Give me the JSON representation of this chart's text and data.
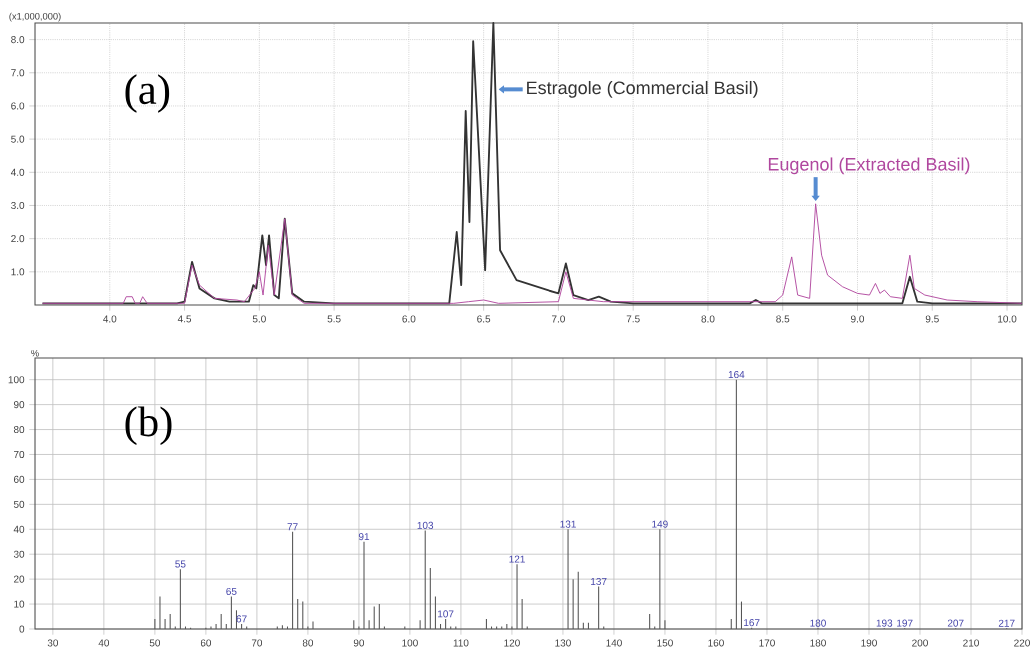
{
  "chart_data": [
    {
      "type": "line",
      "ylabel": "(x1,000,000)",
      "xlim": [
        3.5,
        10.1
      ],
      "ylim": [
        0,
        8.5
      ],
      "xticks": [
        {
          "value": 4,
          "label": "4.0"
        },
        {
          "value": 4.5,
          "label": "4.5"
        },
        {
          "value": 5,
          "label": "5.0"
        },
        {
          "value": 5.5,
          "label": "5.5"
        },
        {
          "value": 6,
          "label": "6.0"
        },
        {
          "value": 6.5,
          "label": "6.5"
        },
        {
          "value": 7,
          "label": "7.0"
        },
        {
          "value": 7.5,
          "label": "7.5"
        },
        {
          "value": 8,
          "label": "8.0"
        },
        {
          "value": 8.5,
          "label": "8.5"
        },
        {
          "value": 9,
          "label": "9.0"
        },
        {
          "value": 9.5,
          "label": "9.5"
        },
        {
          "value": 10,
          "label": "10.0"
        }
      ],
      "yticks": [
        {
          "value": 1,
          "label": "1.0"
        },
        {
          "value": 2,
          "label": "2.0"
        },
        {
          "value": 3,
          "label": "3.0"
        },
        {
          "value": 4,
          "label": "4.0"
        },
        {
          "value": 5,
          "label": "5.0"
        },
        {
          "value": 6,
          "label": "6.0"
        },
        {
          "value": 7,
          "label": "7.0"
        },
        {
          "value": 8,
          "label": "8.0"
        }
      ],
      "grid": true,
      "series": [
        {
          "color": "#333333",
          "x": [
            3.55,
            4.45,
            4.5,
            4.55,
            4.6,
            4.7,
            4.8,
            4.93,
            4.96,
            4.98,
            5.02,
            5.045,
            5.065,
            5.1,
            5.13,
            5.17,
            5.22,
            5.3,
            5.5,
            6.27,
            6.32,
            6.35,
            6.38,
            6.405,
            6.43,
            6.51,
            6.565,
            6.61,
            6.72,
            6.94,
            7.0,
            7.05,
            7.1,
            7.2,
            7.27,
            7.35,
            7.5,
            8.28,
            8.32,
            8.36,
            9.3,
            9.35,
            9.4,
            9.5,
            10.1
          ],
          "values": [
            0.05,
            0.05,
            0.1,
            1.3,
            0.5,
            0.2,
            0.1,
            0.1,
            0.6,
            0.5,
            2.1,
            1.2,
            2.1,
            0.3,
            0.2,
            2.6,
            0.35,
            0.1,
            0.05,
            0.05,
            2.2,
            0.6,
            5.85,
            2.5,
            7.95,
            1.05,
            8.5,
            1.65,
            0.75,
            0.43,
            0.35,
            1.25,
            0.3,
            0.15,
            0.25,
            0.1,
            0.05,
            0.05,
            0.15,
            0.05,
            0.05,
            0.85,
            0.1,
            0.05,
            0.05
          ]
        },
        {
          "color": "#b0479e",
          "x": [
            3.55,
            4.09,
            4.11,
            4.15,
            4.17,
            4.2,
            4.22,
            4.25,
            4.5,
            4.55,
            4.6,
            4.7,
            4.85,
            4.9,
            4.97,
            5.0,
            5.025,
            5.06,
            5.1,
            5.17,
            5.22,
            5.3,
            6.3,
            6.4,
            6.5,
            6.6,
            7.0,
            7.05,
            7.1,
            7.3,
            8.45,
            8.5,
            8.56,
            8.6,
            8.68,
            8.72,
            8.76,
            8.8,
            8.9,
            9.0,
            9.08,
            9.12,
            9.15,
            9.18,
            9.22,
            9.3,
            9.35,
            9.38,
            9.45,
            9.6,
            9.8,
            10.1
          ],
          "values": [
            0.05,
            0.05,
            0.25,
            0.25,
            0.05,
            0.05,
            0.25,
            0.05,
            0.05,
            1.2,
            0.6,
            0.2,
            0.15,
            0.1,
            0.5,
            1.0,
            0.3,
            1.8,
            0.3,
            2.6,
            0.3,
            0.05,
            0.05,
            0.1,
            0.15,
            0.05,
            0.1,
            1.0,
            0.2,
            0.1,
            0.1,
            0.3,
            1.45,
            0.3,
            0.2,
            3.05,
            1.5,
            0.9,
            0.55,
            0.35,
            0.3,
            0.65,
            0.35,
            0.45,
            0.25,
            0.2,
            1.5,
            0.5,
            0.3,
            0.15,
            0.1,
            0.05
          ]
        }
      ],
      "annotations": [
        "(a)",
        {
          "text": "Estragole (Commercial Basil)",
          "x": 6.565,
          "y": 6.5
        },
        {
          "text": "Eugenol (Extracted Basil)",
          "x": 8.72,
          "y": 3.05
        }
      ]
    },
    {
      "type": "bar",
      "ylabel": "%",
      "xlim": [
        26.5,
        220
      ],
      "ylim": [
        0,
        108.7
      ],
      "xticks": [
        30,
        40,
        50,
        60,
        70,
        80,
        90,
        100,
        110,
        120,
        130,
        140,
        150,
        160,
        170,
        180,
        190,
        200,
        210,
        220
      ],
      "yticks": [
        0,
        10,
        20,
        30,
        40,
        50,
        60,
        70,
        80,
        90,
        100
      ],
      "grid": true,
      "series": [
        {
          "color": "#555555",
          "x": [
            50,
            51,
            52,
            53,
            54,
            55,
            56,
            57,
            60,
            61,
            62,
            63,
            64,
            65,
            66,
            67,
            68,
            74,
            75,
            76,
            77,
            78,
            79,
            80,
            81,
            89,
            90,
            91,
            92,
            93,
            94,
            95,
            99,
            102,
            103,
            104,
            105,
            106,
            107,
            108,
            109,
            115,
            116,
            117,
            118,
            119,
            120,
            121,
            122,
            123,
            131,
            132,
            133,
            134,
            135,
            137,
            138,
            147,
            148,
            149,
            150,
            163,
            164,
            165,
            167,
            180,
            193,
            197,
            207,
            217
          ],
          "values": [
            4,
            13,
            4,
            6,
            1,
            24,
            1,
            0.5,
            0.5,
            1,
            2,
            6,
            2,
            13,
            7.5,
            2,
            1,
            1,
            1.5,
            1,
            39,
            12,
            11,
            1,
            3,
            3.5,
            1,
            35,
            3.5,
            9,
            10,
            1,
            1,
            3.5,
            39.5,
            24.5,
            13,
            2,
            4,
            1,
            1,
            4,
            1,
            1,
            1,
            2,
            1,
            26,
            12,
            1,
            40,
            20,
            23,
            2.5,
            2.5,
            17,
            1,
            6,
            1,
            40,
            3.5,
            4,
            100,
            11,
            0.5,
            0.3,
            0.3,
            0.3,
            0.3,
            0.3
          ]
        }
      ],
      "annotations": [
        "(b)",
        {
          "text": "55",
          "x": 55,
          "y": 24
        },
        {
          "text": "65",
          "x": 65,
          "y": 13
        },
        {
          "text": "67",
          "x": 67,
          "y": 2
        },
        {
          "text": "77",
          "x": 77,
          "y": 39
        },
        {
          "text": "91",
          "x": 91,
          "y": 35
        },
        {
          "text": "103",
          "x": 103,
          "y": 39.5
        },
        {
          "text": "107",
          "x": 107,
          "y": 4
        },
        {
          "text": "121",
          "x": 121,
          "y": 26
        },
        {
          "text": "131",
          "x": 131,
          "y": 40
        },
        {
          "text": "137",
          "x": 137,
          "y": 17
        },
        {
          "text": "149",
          "x": 149,
          "y": 40
        },
        {
          "text": "164",
          "x": 164,
          "y": 100
        },
        {
          "text": "167",
          "x": 167,
          "y": 0.5
        },
        {
          "text": "180",
          "x": 180,
          "y": 0.3
        },
        {
          "text": "193",
          "x": 193,
          "y": 0.3
        },
        {
          "text": "197",
          "x": 197,
          "y": 0.3
        },
        {
          "text": "207",
          "x": 207,
          "y": 0.3
        },
        {
          "text": "217",
          "x": 217,
          "y": 0.3
        }
      ]
    }
  ]
}
